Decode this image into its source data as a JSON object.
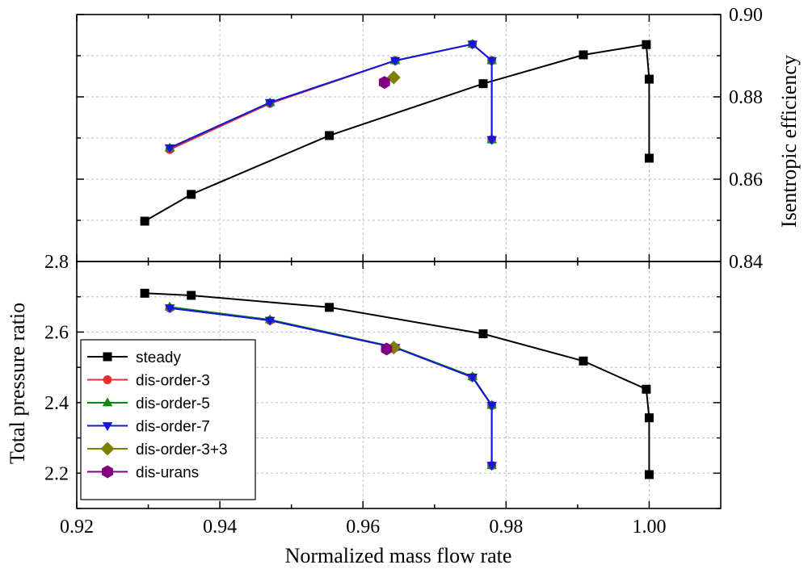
{
  "chart_data": [
    {
      "type": "line",
      "panel": "top",
      "xlabel": "Normalized mass flow rate",
      "ylabel": "Isentropic efficiency",
      "y_axis_side": "right",
      "xlim": [
        0.92,
        1.01
      ],
      "ylim": [
        0.84,
        0.9
      ],
      "x_ticks": [
        0.92,
        0.94,
        0.96,
        0.98,
        1.0
      ],
      "y_ticks": [
        "0.84",
        "0.86",
        "0.88",
        "0.90"
      ],
      "grid": true,
      "series": [
        {
          "name": "steady",
          "color": "#000000",
          "marker": "square",
          "x": [
            0.9295,
            0.936,
            0.9553,
            0.9768,
            0.9908,
            0.9996,
            1.0,
            1.0
          ],
          "y": [
            0.8498,
            0.8563,
            0.8706,
            0.8832,
            0.8902,
            0.8927,
            0.8843,
            0.8651
          ]
        },
        {
          "name": "dis-order-3",
          "color": "#e8302a",
          "marker": "circle",
          "x": [
            0.933,
            0.947,
            0.9645,
            0.9753,
            0.978,
            0.978
          ],
          "y": [
            0.8672,
            0.8784,
            0.8888,
            0.8928,
            0.8888,
            0.8696
          ]
        },
        {
          "name": "dis-order-5",
          "color": "#0a8a0a",
          "marker": "triangle-up",
          "x": [
            0.933,
            0.947,
            0.9645,
            0.9753,
            0.978,
            0.978
          ],
          "y": [
            0.8676,
            0.8786,
            0.8888,
            0.8928,
            0.8888,
            0.8696
          ]
        },
        {
          "name": "dis-order-7",
          "color": "#1515e0",
          "marker": "triangle-down",
          "x": [
            0.933,
            0.947,
            0.9645,
            0.9753,
            0.978,
            0.978
          ],
          "y": [
            0.8676,
            0.8786,
            0.8888,
            0.8928,
            0.8888,
            0.8696
          ]
        },
        {
          "name": "dis-order-3+3",
          "color": "#808000",
          "marker": "diamond",
          "x": [
            0.9643
          ],
          "y": [
            0.8847
          ]
        },
        {
          "name": "dis-urans",
          "color": "#800080",
          "marker": "hexagon",
          "x": [
            0.963
          ],
          "y": [
            0.8835
          ]
        }
      ]
    },
    {
      "type": "line",
      "panel": "bottom",
      "xlabel": "Normalized mass flow rate",
      "ylabel": "Total pressure ratio",
      "y_axis_side": "left",
      "xlim": [
        0.92,
        1.01
      ],
      "ylim": [
        2.1,
        2.8
      ],
      "x_ticks": [
        "0.92",
        "0.94",
        "0.96",
        "0.98",
        "1.00"
      ],
      "y_ticks": [
        "2.2",
        "2.4",
        "2.6",
        "2.8"
      ],
      "grid": true,
      "legend_position": "lower-left",
      "series": [
        {
          "name": "steady",
          "color": "#000000",
          "marker": "square",
          "x": [
            0.9295,
            0.936,
            0.9553,
            0.9768,
            0.9908,
            0.9996,
            1.0,
            1.0
          ],
          "y": [
            2.71,
            2.704,
            2.67,
            2.595,
            2.518,
            2.438,
            2.357,
            2.196
          ]
        },
        {
          "name": "dis-order-3",
          "color": "#e8302a",
          "marker": "circle",
          "x": [
            0.933,
            0.947,
            0.9645,
            0.9753,
            0.978,
            0.978
          ],
          "y": [
            2.668,
            2.633,
            2.556,
            2.472,
            2.392,
            2.222
          ]
        },
        {
          "name": "dis-order-5",
          "color": "#0a8a0a",
          "marker": "triangle-up",
          "x": [
            0.933,
            0.947,
            0.9645,
            0.9753,
            0.978,
            0.978
          ],
          "y": [
            2.671,
            2.635,
            2.557,
            2.474,
            2.393,
            2.222
          ]
        },
        {
          "name": "dis-order-7",
          "color": "#1515e0",
          "marker": "triangle-down",
          "x": [
            0.933,
            0.947,
            0.9645,
            0.9753,
            0.978,
            0.978
          ],
          "y": [
            2.668,
            2.633,
            2.556,
            2.472,
            2.392,
            2.222
          ]
        },
        {
          "name": "dis-order-3+3",
          "color": "#808000",
          "marker": "diamond",
          "x": [
            0.9643
          ],
          "y": [
            2.556
          ]
        },
        {
          "name": "dis-urans",
          "color": "#800080",
          "marker": "hexagon",
          "x": [
            0.9633
          ],
          "y": [
            2.552
          ]
        }
      ]
    }
  ]
}
